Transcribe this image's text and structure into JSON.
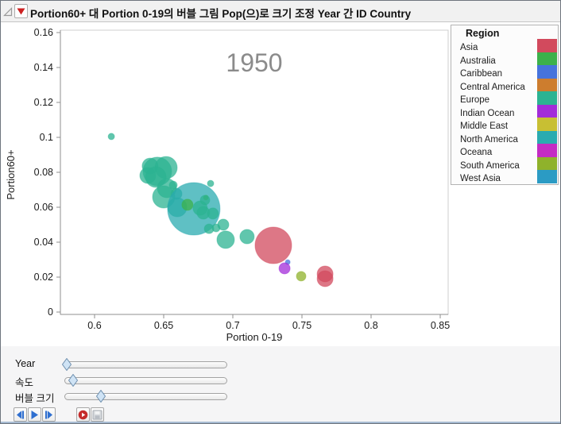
{
  "window": {
    "title": "Portion60+ 대 Portion 0-19의 버블 그림 Pop(으)로 크기 조정 Year 간 ID Country",
    "menu_red": "#cc1f1f",
    "icons": [
      "disclosure-triangle-icon",
      "red-triangle-menu-icon"
    ]
  },
  "legend": {
    "title": "Region",
    "regions": [
      {
        "name": "Asia",
        "color": "#d24a5d"
      },
      {
        "name": "Australia",
        "color": "#3cb14b"
      },
      {
        "name": "Caribbean",
        "color": "#4673dc"
      },
      {
        "name": "Central America",
        "color": "#cd7d2e"
      },
      {
        "name": "Europe",
        "color": "#2cb392"
      },
      {
        "name": "Indian Ocean",
        "color": "#a32cd9"
      },
      {
        "name": "Middle East",
        "color": "#c8bf33"
      },
      {
        "name": "North America",
        "color": "#2aabb0"
      },
      {
        "name": "Oceana",
        "color": "#c42cc4"
      },
      {
        "name": "South America",
        "color": "#8fb22b"
      },
      {
        "name": "West Asia",
        "color": "#2b9bc4"
      }
    ]
  },
  "chart_data": {
    "type": "scatter",
    "bubble": true,
    "size_variable": "Pop",
    "year_annotation": "1950",
    "xlabel": "Portion 0-19",
    "ylabel": "Portion60+",
    "xlim": [
      0.5753,
      0.8557
    ],
    "ylim": [
      -0.0014,
      0.1614
    ],
    "xtick_values": [
      0.6,
      0.65,
      0.7,
      0.75,
      0.8,
      0.85
    ],
    "xtick_labels": [
      "0.6",
      "0.65",
      "0.7",
      "0.75",
      "0.8",
      "0.85"
    ],
    "ytick_values": [
      0,
      0.02,
      0.04,
      0.06,
      0.08,
      0.1,
      0.12,
      0.14,
      0.16
    ],
    "ytick_labels": [
      "0",
      "0.02",
      "0.04",
      "0.06",
      "0.08",
      "0.1",
      "0.12",
      "0.14",
      "0.16"
    ],
    "grid": false,
    "legend_position": "top-right",
    "series": [
      {
        "region": "Europe",
        "x": 0.6121,
        "y": 0.1005,
        "r": 4
      },
      {
        "region": "Europe",
        "x": 0.6402,
        "y": 0.0836,
        "r": 10
      },
      {
        "region": "Europe",
        "x": 0.6454,
        "y": 0.0805,
        "r": 18
      },
      {
        "region": "Europe",
        "x": 0.6517,
        "y": 0.0827,
        "r": 14
      },
      {
        "region": "Europe",
        "x": 0.6385,
        "y": 0.0782,
        "r": 10
      },
      {
        "region": "Europe",
        "x": 0.6443,
        "y": 0.0773,
        "r": 13
      },
      {
        "region": "Europe",
        "x": 0.6523,
        "y": 0.0709,
        "r": 12
      },
      {
        "region": "Europe",
        "x": 0.6569,
        "y": 0.0727,
        "r": 5
      },
      {
        "region": "Europe",
        "x": 0.6592,
        "y": 0.0677,
        "r": 7
      },
      {
        "region": "Europe",
        "x": 0.65,
        "y": 0.0659,
        "r": 14
      },
      {
        "region": "Europe",
        "x": 0.6598,
        "y": 0.06,
        "r": 12
      },
      {
        "region": "North America",
        "x": 0.6718,
        "y": 0.0591,
        "r": 33
      },
      {
        "region": "Australia",
        "x": 0.6672,
        "y": 0.0614,
        "r": 7
      },
      {
        "region": "Europe",
        "x": 0.6839,
        "y": 0.0736,
        "r": 4
      },
      {
        "region": "Australia",
        "x": 0.6805,
        "y": 0.0655,
        "r": 3
      },
      {
        "region": "Europe",
        "x": 0.6799,
        "y": 0.0641,
        "r": 6
      },
      {
        "region": "Europe",
        "x": 0.6764,
        "y": 0.0595,
        "r": 9
      },
      {
        "region": "Europe",
        "x": 0.6787,
        "y": 0.0568,
        "r": 8
      },
      {
        "region": "Europe",
        "x": 0.6856,
        "y": 0.0564,
        "r": 7
      },
      {
        "region": "Europe",
        "x": 0.6931,
        "y": 0.05,
        "r": 7
      },
      {
        "region": "Europe",
        "x": 0.6828,
        "y": 0.0477,
        "r": 6
      },
      {
        "region": "Europe",
        "x": 0.6879,
        "y": 0.0482,
        "r": 5
      },
      {
        "region": "Europe",
        "x": 0.6948,
        "y": 0.0414,
        "r": 11
      },
      {
        "region": "Europe",
        "x": 0.7103,
        "y": 0.0432,
        "r": 9
      },
      {
        "region": "Asia",
        "x": 0.7293,
        "y": 0.0382,
        "r": 23
      },
      {
        "region": "Caribbean",
        "x": 0.7397,
        "y": 0.0286,
        "r": 3
      },
      {
        "region": "Indian Ocean",
        "x": 0.7374,
        "y": 0.025,
        "r": 7
      },
      {
        "region": "South America",
        "x": 0.7494,
        "y": 0.0205,
        "r": 6
      },
      {
        "region": "Asia",
        "x": 0.7667,
        "y": 0.0218,
        "r": 10
      },
      {
        "region": "Asia",
        "x": 0.7667,
        "y": 0.0191,
        "r": 10
      }
    ]
  },
  "controls": {
    "sliders": [
      {
        "label": "Year",
        "value_pct": 1
      },
      {
        "label": "속도",
        "value_pct": 5
      },
      {
        "label": "버블 크기",
        "value_pct": 22
      }
    ],
    "buttons": [
      "step-backward",
      "play",
      "step-forward",
      "record",
      "save"
    ],
    "accent_blue": "#2f6fd0",
    "record_red": "#c52b2b",
    "record_glyph": "#ffffff",
    "thumb_fill": "#cfe3f5",
    "thumb_stroke": "#6e8fae",
    "save_body": "#d6d9dd",
    "save_edge": "#a8adb4",
    "save_label": "#f2f3f4",
    "save_shutter": "#b9bec5"
  }
}
